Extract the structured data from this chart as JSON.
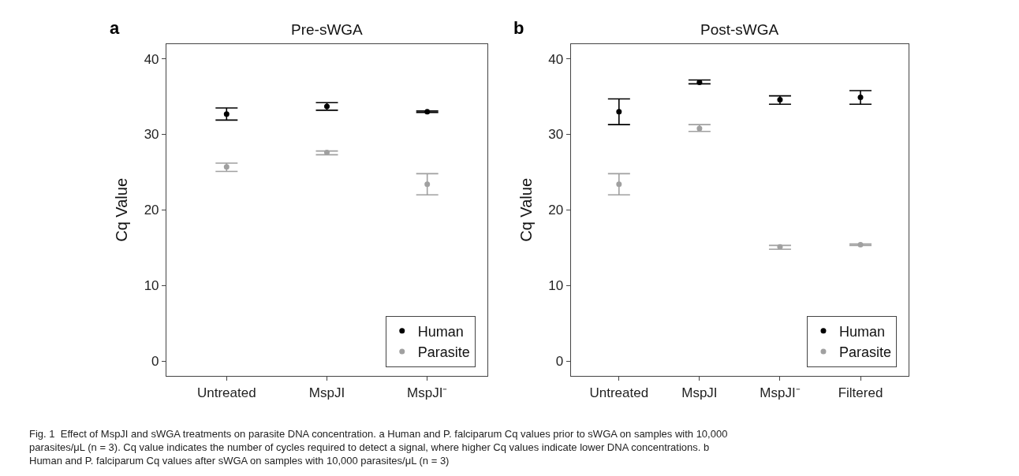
{
  "chart_data": [
    {
      "type": "scatter",
      "title": "Pre-sWGA",
      "ylabel": "Cq Value",
      "categories": [
        "Untreated",
        "MspJI",
        "MspJI⁻"
      ],
      "series": [
        {
          "name": "Human",
          "color": "#000000",
          "values": [
            32.7,
            33.7,
            33.0
          ],
          "errors": [
            [
              31.9,
              33.5
            ],
            [
              33.2,
              34.2
            ],
            [
              32.9,
              33.1
            ]
          ]
        },
        {
          "name": "Parasite",
          "color": "#a0a0a0",
          "values": [
            25.7,
            27.6,
            23.4
          ],
          "errors": [
            [
              25.1,
              26.2
            ],
            [
              27.3,
              27.8
            ],
            [
              22.0,
              24.8
            ]
          ]
        }
      ],
      "ylim": [
        -2,
        42
      ],
      "yticks": [
        0,
        10,
        20,
        30,
        40
      ],
      "legend": "bottom right",
      "marker": "circle",
      "annotations": [
        "a",
        "Fig. 1  Effect of MspJI and sWGA treatments on parasite DNA concentration. a Human and P. falciparum Cq values prior to sWGA on samples with 10,000 parasites/μL (n = 3). Cq value indicates the number of cycles required to detect a signal, where higher Cq values indicate lower DNA concentrations. b Human and P. falciparum Cq values after sWGA on samples with 10,000 parasites/μL (n = 3)"
      ]
    },
    {
      "type": "scatter",
      "title": "Post-sWGA",
      "ylabel": "Cq Value",
      "categories": [
        "Untreated",
        "MspJI",
        "MspJI⁻",
        "Filtered"
      ],
      "series": [
        {
          "name": "Human",
          "color": "#000000",
          "values": [
            33.0,
            36.9,
            34.6,
            34.9
          ],
          "errors": [
            [
              31.3,
              34.7
            ],
            [
              36.7,
              37.2
            ],
            [
              34.0,
              35.1
            ],
            [
              34.0,
              35.8
            ]
          ]
        },
        {
          "name": "Parasite",
          "color": "#a0a0a0",
          "values": [
            23.4,
            30.8,
            15.1,
            15.4
          ],
          "errors": [
            [
              22.0,
              24.8
            ],
            [
              30.4,
              31.3
            ],
            [
              14.8,
              15.3
            ],
            [
              15.3,
              15.5
            ]
          ]
        }
      ],
      "ylim": [
        -2,
        42
      ],
      "yticks": [
        0,
        10,
        20,
        30,
        40
      ],
      "legend": "bottom right",
      "marker": "circle",
      "annotations": [
        "b"
      ]
    }
  ]
}
